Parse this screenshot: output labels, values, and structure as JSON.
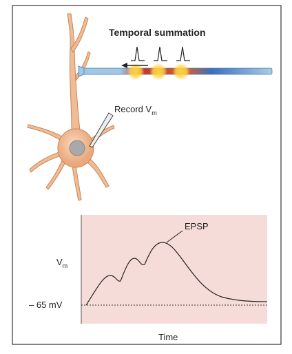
{
  "figure": {
    "title": "Temporal summation",
    "electrode_label": {
      "text": "Record V",
      "subscript": "m"
    },
    "curve_label": "EPSP",
    "y_axis_label": {
      "text": "V",
      "subscript": "m"
    },
    "baseline_label": "– 65 mV",
    "x_axis_label": "Time"
  }
}
